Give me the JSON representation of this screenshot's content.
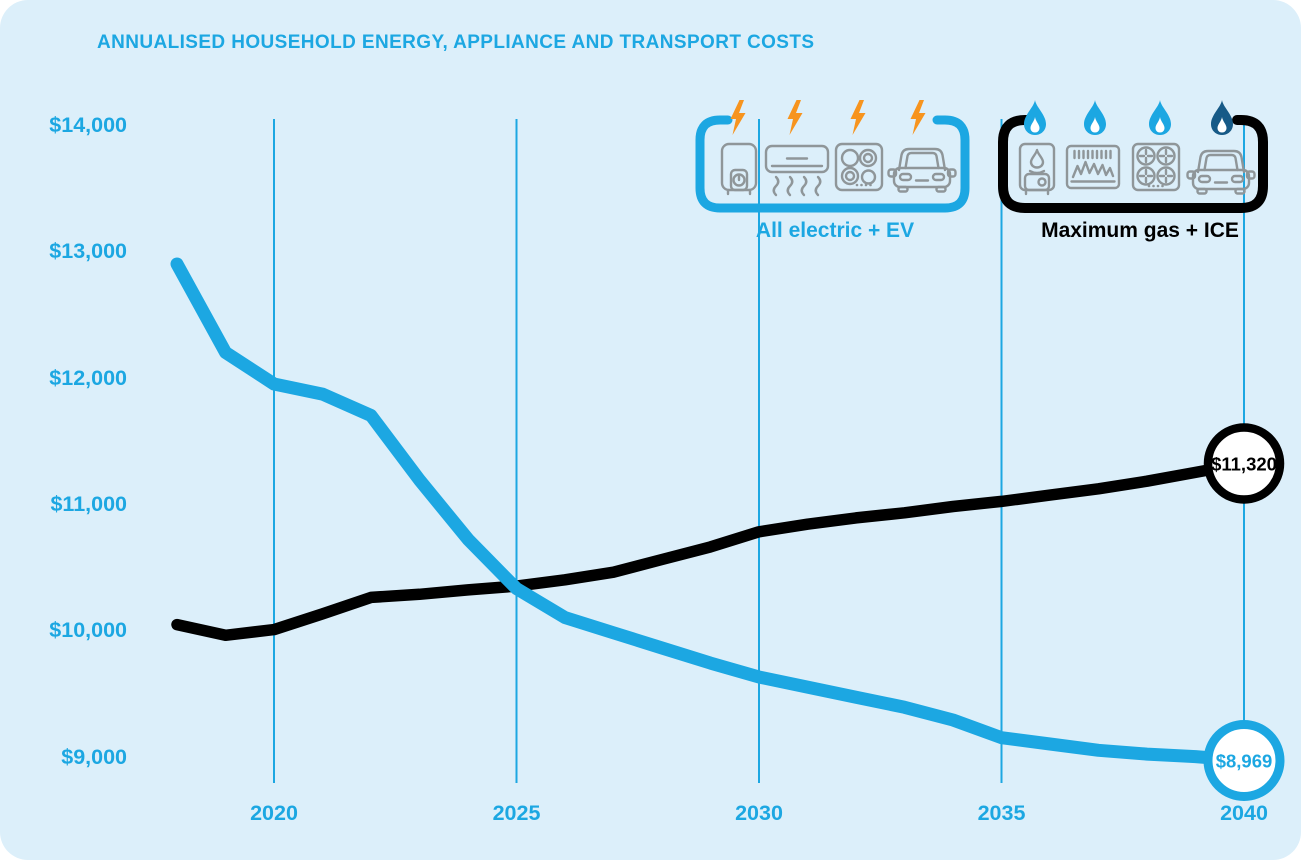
{
  "title": "ANNUALISED HOUSEHOLD ENERGY, APPLIANCE AND TRANSPORT COSTS",
  "colors": {
    "accent_blue": "#1ca7e2",
    "black": "#000000",
    "bolt_orange": "#f7941e",
    "icon_gray": "#8f9699",
    "dark_flame_blue": "#175a87",
    "card_background": "#dceffa"
  },
  "legend": {
    "electric": {
      "label": "All electric + EV",
      "symbol": "lightning-bolt",
      "symbol_color": "#f7941e",
      "bracket_color": "#1ca7e2",
      "icons": [
        "electric-water-heater",
        "air-conditioner",
        "induction-cooktop",
        "electric-vehicle"
      ]
    },
    "gas": {
      "label": "Maximum gas + ICE",
      "symbol": "gas-flame",
      "symbol_colors": [
        "#1ca7e2",
        "#1ca7e2",
        "#1ca7e2",
        "#175a87"
      ],
      "bracket_color": "#000000",
      "icons": [
        "gas-water-heater",
        "gas-heater",
        "gas-cooktop",
        "ice-vehicle"
      ]
    }
  },
  "chart_data": {
    "type": "line",
    "title": "ANNUALISED HOUSEHOLD ENERGY, APPLIANCE AND TRANSPORT COSTS",
    "xlabel": "",
    "ylabel": "",
    "xlim": [
      2018,
      2040
    ],
    "ylim": [
      9000,
      14000
    ],
    "grid": "vertical-only",
    "ytick_labels": [
      "$14,000",
      "$13,000",
      "$12,000",
      "$11,000",
      "$10,000",
      "$9,000"
    ],
    "ytick_values": [
      14000,
      13000,
      12000,
      11000,
      10000,
      9000
    ],
    "xtick_labels": [
      "2020",
      "2025",
      "2030",
      "2035",
      "2040"
    ],
    "xtick_values": [
      2020,
      2025,
      2030,
      2035,
      2040
    ],
    "x": [
      2018,
      2019,
      2020,
      2021,
      2022,
      2023,
      2024,
      2025,
      2026,
      2027,
      2028,
      2029,
      2030,
      2031,
      2032,
      2033,
      2034,
      2035,
      2036,
      2037,
      2038,
      2039,
      2040
    ],
    "series": [
      {
        "name": "All electric + EV",
        "color": "#1ca7e2",
        "end_label": "$8,969",
        "end_value": 8969,
        "values": [
          12900,
          12200,
          11950,
          11870,
          11700,
          11190,
          10720,
          10330,
          10100,
          9980,
          9860,
          9740,
          9630,
          9550,
          9470,
          9390,
          9290,
          9150,
          9100,
          9050,
          9020,
          9000,
          8969
        ]
      },
      {
        "name": "Maximum gas + ICE",
        "color": "#000000",
        "end_label": "$11,320",
        "end_value": 11320,
        "values": [
          10045,
          9960,
          10005,
          10130,
          10260,
          10285,
          10320,
          10350,
          10400,
          10460,
          10560,
          10660,
          10780,
          10840,
          10890,
          10930,
          10980,
          11020,
          11070,
          11120,
          11180,
          11250,
          11320
        ]
      }
    ]
  }
}
